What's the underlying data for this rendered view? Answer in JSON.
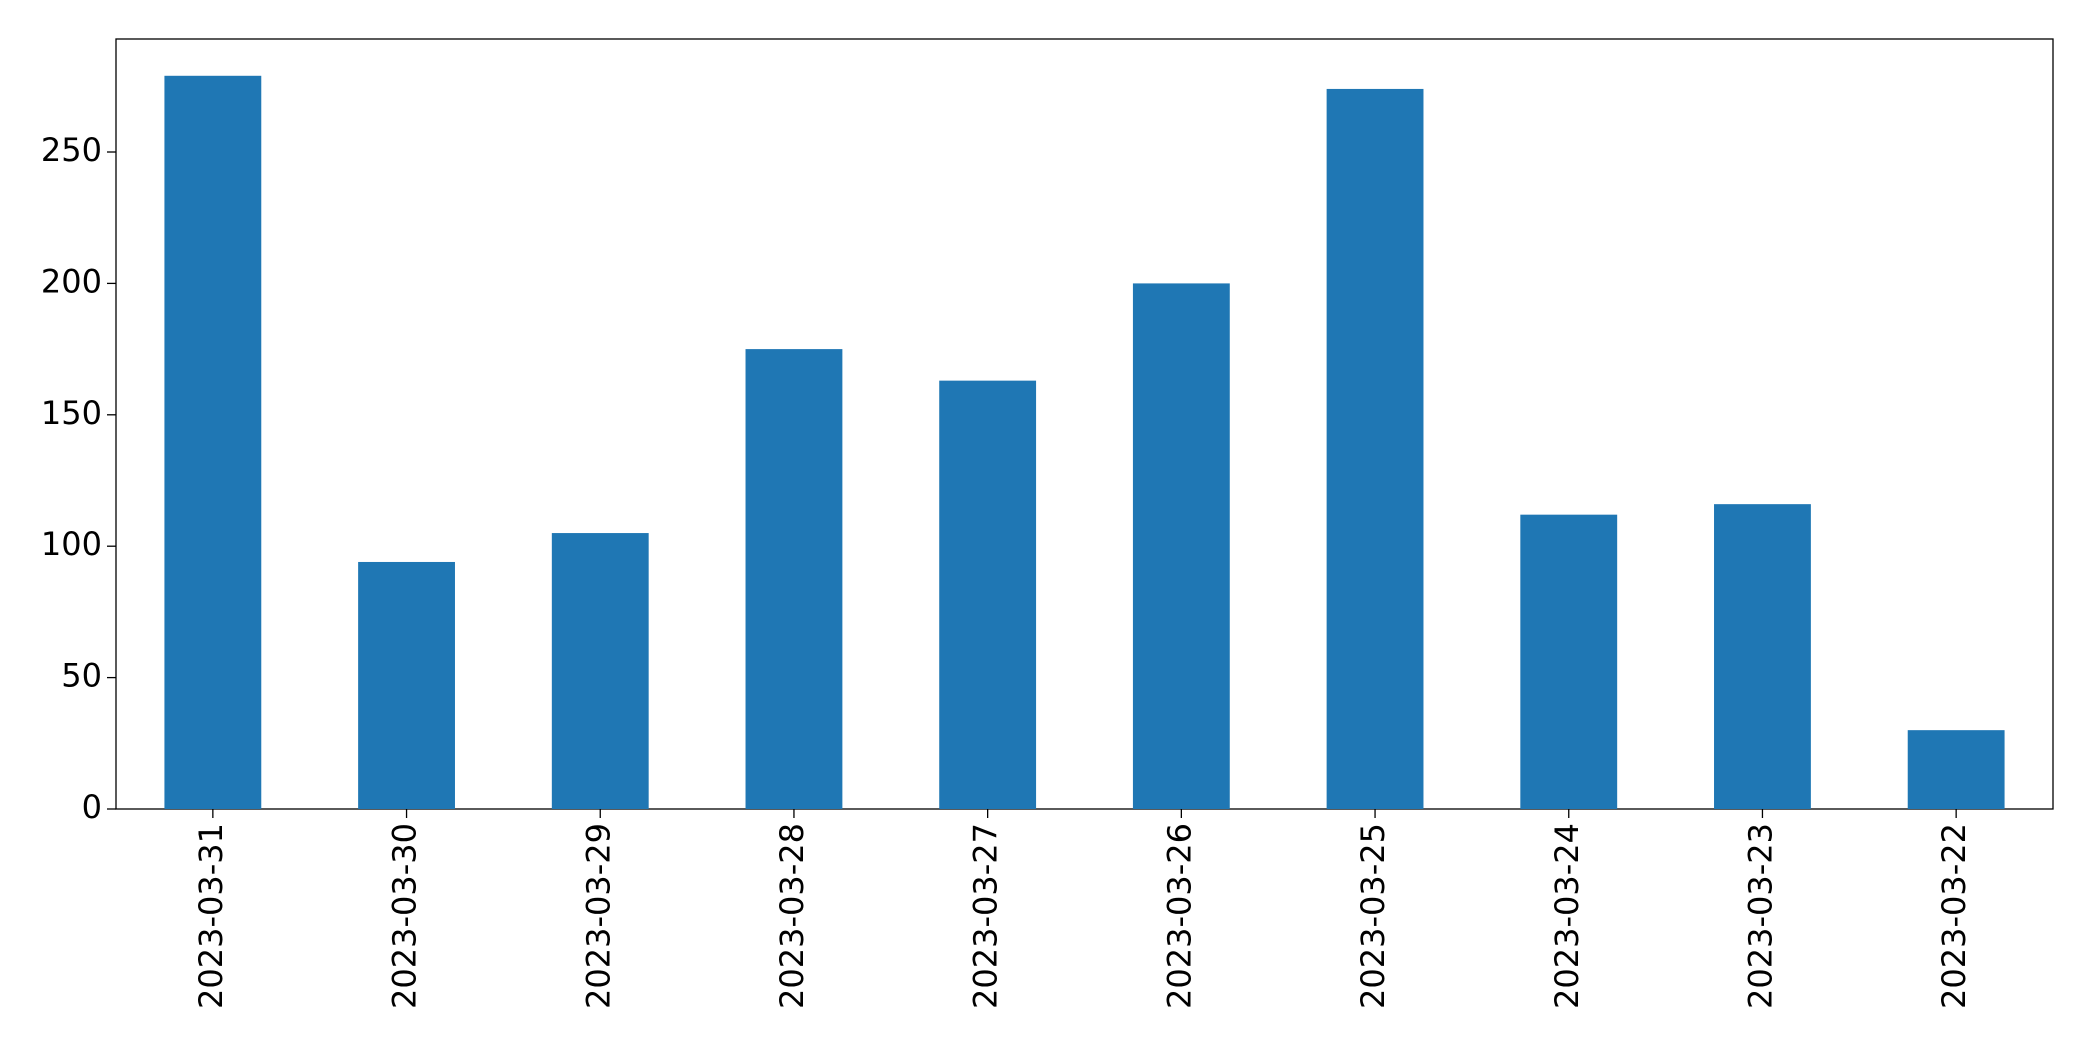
{
  "chart_data": {
    "type": "bar",
    "categories": [
      "2023-03-31",
      "2023-03-30",
      "2023-03-29",
      "2023-03-28",
      "2023-03-27",
      "2023-03-26",
      "2023-03-25",
      "2023-03-24",
      "2023-03-23",
      "2023-03-22"
    ],
    "values": [
      279,
      94,
      105,
      175,
      163,
      200,
      274,
      112,
      116,
      30
    ],
    "color": "#1f77b4",
    "ylim": [
      0,
      293
    ],
    "yticks": [
      0,
      50,
      100,
      150,
      200,
      250
    ],
    "grid": false
  }
}
